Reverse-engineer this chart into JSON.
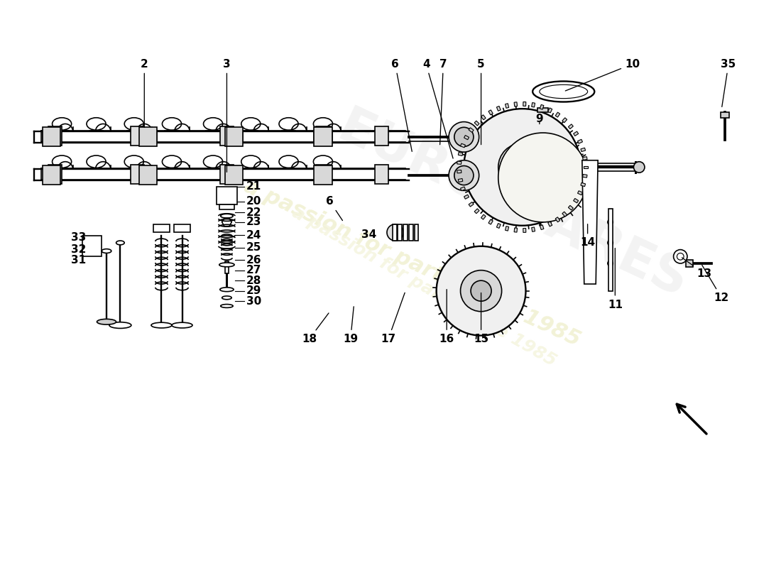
{
  "title": "",
  "background_color": "#ffffff",
  "watermark_text": "a passion for parts since 1985",
  "watermark_color": "#f0f0d0",
  "part_numbers": [
    2,
    3,
    4,
    5,
    6,
    7,
    9,
    10,
    11,
    12,
    13,
    14,
    15,
    16,
    17,
    18,
    19,
    20,
    21,
    22,
    23,
    24,
    25,
    26,
    27,
    28,
    29,
    30,
    31,
    32,
    33,
    34,
    35
  ],
  "line_color": "#000000",
  "line_width": 1.2
}
